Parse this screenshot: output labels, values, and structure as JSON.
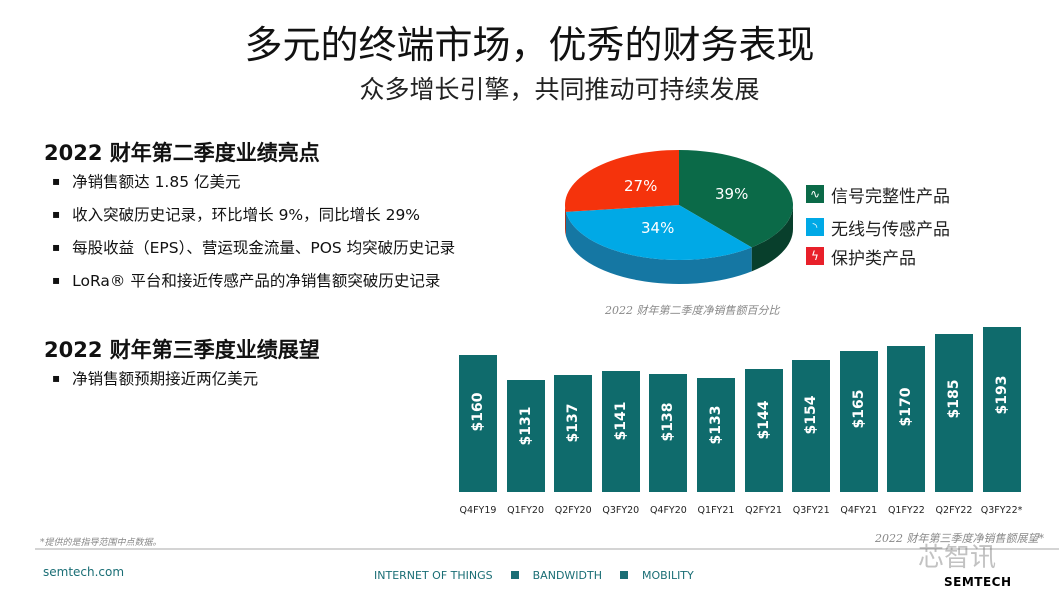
{
  "title": "多元的终端市场，优秀的财务表现",
  "subtitle": "众多增长引擎，共同推动可持续发展",
  "q2": {
    "heading": "2022 财年第二季度业绩亮点",
    "bullets": [
      "净销售额达 1.85 亿美元",
      "收入突破历史记录，环比增长 9%，同比增长 29%",
      "每股收益（EPS）、营运现金流量、POS 均突破历史记录",
      "LoRa® 平台和接近传感产品的净销售额突破历史记录"
    ]
  },
  "q3": {
    "heading": "2022 财年第三季度业绩展望",
    "bullets": [
      "净销售额预期接近两亿美元"
    ]
  },
  "chart_data": [
    {
      "type": "pie",
      "title": "2022 财年第二季度净销售额百分比",
      "slices": [
        {
          "name": "信号完整性产品",
          "value": 39,
          "label": "39%",
          "color": "#0b6a48",
          "icon": "sine-wave-icon"
        },
        {
          "name": "无线与传感产品",
          "value": 34,
          "label": "34%",
          "color": "#00a9e6",
          "icon": "wireless-icon"
        },
        {
          "name": "保护类产品",
          "value": 27,
          "label": "27%",
          "color": "#f5330c",
          "icon": "lightning-icon"
        }
      ],
      "legend": "right"
    },
    {
      "type": "bar",
      "title": "2022 财年第三季度净销售额展望*",
      "categories": [
        "Q4FY19",
        "Q1FY20",
        "Q2FY20",
        "Q3FY20",
        "Q4FY20",
        "Q1FY21",
        "Q2FY21",
        "Q3FY21",
        "Q4FY21",
        "Q1FY22",
        "Q2FY22",
        "Q3FY22*"
      ],
      "values": [
        160,
        131,
        137,
        141,
        138,
        133,
        144,
        154,
        165,
        170,
        185,
        193
      ],
      "labels": [
        "$160",
        "$131",
        "$137",
        "$141",
        "$138",
        "$133",
        "$144",
        "$154",
        "$165",
        "$170",
        "$185",
        "$193"
      ],
      "color": "#0f6b6c"
    }
  ],
  "footnote": "*提供的是指导范围中点数据。",
  "footer": {
    "site": "semtech.com",
    "segments": [
      "INTERNET OF THINGS",
      "BANDWIDTH",
      "MOBILITY"
    ],
    "logo": "SEMTECH",
    "accent": "#1a6e75"
  },
  "watermark": "芯智讯"
}
